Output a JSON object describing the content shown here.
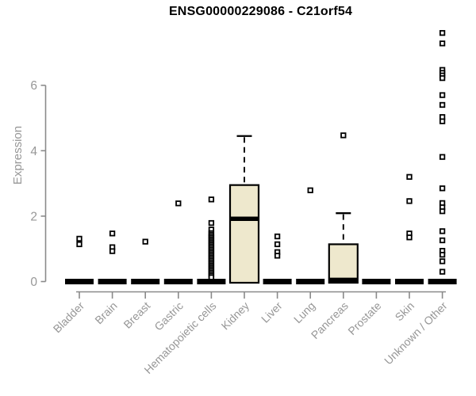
{
  "chart_data": {
    "type": "boxplot",
    "title": "ENSG00000229086 - C21orf54",
    "ylabel": "Expression",
    "xlabel": "",
    "yticks": [
      0,
      2,
      4,
      6
    ],
    "ylim": [
      0,
      7.8
    ],
    "grid": false,
    "legend": false,
    "box_fill_color": "#EEE8CD",
    "box_stroke_color": "#000000",
    "axis_color": "#8A8A8A",
    "label_color": "#979797",
    "point_color": "#000000",
    "categories": [
      "Bladder",
      "Brain",
      "Breast",
      "Gastric",
      "Hematopoietic cells",
      "Kidney",
      "Liver",
      "Lung",
      "Pancreas",
      "Prostate",
      "Skin",
      "Unknown / Other"
    ],
    "boxes": [
      {
        "category": "Bladder",
        "q1": 0,
        "median": 0,
        "q3": 0,
        "whisker_low": 0,
        "whisker_high": 0,
        "outliers": [
          1.31,
          1.14
        ]
      },
      {
        "category": "Brain",
        "q1": 0,
        "median": 0,
        "q3": 0,
        "whisker_low": 0,
        "whisker_high": 0,
        "outliers": [
          1.47,
          1.05,
          0.93
        ]
      },
      {
        "category": "Breast",
        "q1": 0,
        "median": 0,
        "q3": 0,
        "whisker_low": 0,
        "whisker_high": 0,
        "outliers": [
          1.22
        ]
      },
      {
        "category": "Gastric",
        "q1": 0,
        "median": 0,
        "q3": 0,
        "whisker_low": 0,
        "whisker_high": 0,
        "outliers": [
          2.39
        ]
      },
      {
        "category": "Hematopoietic cells",
        "q1": 0,
        "median": 0,
        "q3": 0,
        "whisker_low": 0,
        "whisker_high": 0,
        "outliers": [
          2.51,
          1.79,
          1.59,
          1.48,
          1.43,
          1.38,
          1.33,
          1.28,
          1.23,
          1.18,
          1.13,
          1.08,
          1.03,
          0.98,
          0.93,
          0.88,
          0.83,
          0.78,
          0.73,
          0.68,
          0.63,
          0.58,
          0.53,
          0.48,
          0.43,
          0.38,
          0.33,
          0.28,
          0.23,
          0.18,
          0.13
        ]
      },
      {
        "category": "Kidney",
        "q1": 0,
        "median": 1.92,
        "q3": 2.95,
        "whisker_low": 0,
        "whisker_high": 4.45,
        "outliers": []
      },
      {
        "category": "Liver",
        "q1": 0,
        "median": 0,
        "q3": 0,
        "whisker_low": 0,
        "whisker_high": 0,
        "outliers": [
          1.38,
          1.14,
          0.9,
          0.79
        ]
      },
      {
        "category": "Lung",
        "q1": 0,
        "median": 0,
        "q3": 0,
        "whisker_low": 0,
        "whisker_high": 0,
        "outliers": [
          2.79
        ]
      },
      {
        "category": "Pancreas",
        "q1": 0,
        "median": 0.05,
        "q3": 1.14,
        "whisker_low": 0,
        "whisker_high": 2.09,
        "outliers": [
          4.47
        ]
      },
      {
        "category": "Prostate",
        "q1": 0,
        "median": 0,
        "q3": 0,
        "whisker_low": 0,
        "whisker_high": 0,
        "outliers": []
      },
      {
        "category": "Skin",
        "q1": 0,
        "median": 0,
        "q3": 0,
        "whisker_low": 0,
        "whisker_high": 0,
        "outliers": [
          3.2,
          2.46,
          1.47,
          1.35
        ]
      },
      {
        "category": "Unknown / Other",
        "q1": 0,
        "median": 0,
        "q3": 0,
        "whisker_low": 0,
        "whisker_high": 0,
        "outliers": [
          7.6,
          7.28,
          6.47,
          6.38,
          6.3,
          6.22,
          5.7,
          5.4,
          5.03,
          4.9,
          3.81,
          2.85,
          2.4,
          2.27,
          2.15,
          1.54,
          1.26,
          0.94,
          0.82,
          0.62,
          0.3
        ]
      }
    ]
  }
}
